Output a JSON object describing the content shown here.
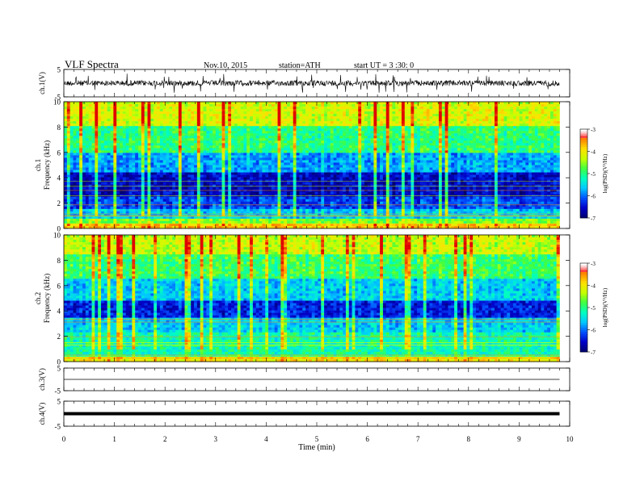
{
  "header": {
    "title": "VLF Spectra",
    "date": "Nov.10, 2015",
    "station": "station=ATH",
    "start": "start UT =  3 :30: 0"
  },
  "colors": {
    "spectrum_scale": [
      "#000070",
      "#0000c8",
      "#0050ff",
      "#00c8ff",
      "#00ffc0",
      "#40ff40",
      "#c8ff00",
      "#ffe000",
      "#ff8000",
      "#e00000",
      "#ffffff"
    ],
    "waveform": "#000000"
  },
  "chart_data": [
    {
      "type": "line",
      "panel": "ch1-waveform",
      "ylabel": "ch.1(V)",
      "ylim": [
        -5,
        5
      ],
      "yticks": [
        "5",
        "-5"
      ],
      "xlim": [
        0,
        10
      ],
      "description_values": {
        "typical_amplitude": 1.0,
        "spike_max": 3.5
      }
    },
    {
      "type": "heatmap",
      "panel": "ch1-spectrogram",
      "ylabel_line1": "ch.1",
      "ylabel_line2": "Frequency (kHz)",
      "ylim": [
        0,
        10
      ],
      "yticks": [
        "0",
        "2",
        "4",
        "6",
        "8",
        "10"
      ],
      "xlim": [
        0,
        9.8
      ],
      "colorbar_label": "log(PSD)(V²/Hz)",
      "colorbar_range": [
        -7,
        -3
      ],
      "colorbar_ticks": [
        "-3",
        "-4",
        "-5",
        "-6",
        "-7"
      ],
      "bands_logpsd": [
        {
          "f": [
            0,
            0.3
          ],
          "v": -3.8
        },
        {
          "f": [
            0.3,
            0.8
          ],
          "v": -4.6
        },
        {
          "f": [
            0.8,
            1.5
          ],
          "v": -5.6
        },
        {
          "f": [
            1.5,
            2.5
          ],
          "v": -6.2
        },
        {
          "f": [
            2.5,
            4.5
          ],
          "v": -6.6
        },
        {
          "f": [
            4.5,
            6.0
          ],
          "v": -5.8
        },
        {
          "f": [
            6.0,
            8.0
          ],
          "v": -5.0
        },
        {
          "f": [
            8.0,
            10.0
          ],
          "v": -4.2
        }
      ]
    },
    {
      "type": "heatmap",
      "panel": "ch2-spectrogram",
      "ylabel_line1": "ch.2",
      "ylabel_line2": "Frequency (kHz)",
      "ylim": [
        0,
        10
      ],
      "yticks": [
        "0",
        "2",
        "4",
        "6",
        "8",
        "10"
      ],
      "xlim": [
        0,
        9.8
      ],
      "colorbar_label": "log(PSD)(V²/Hz)",
      "colorbar_range": [
        -7,
        -3
      ],
      "colorbar_ticks": [
        "-3",
        "-4",
        "-5",
        "-6",
        "-7"
      ],
      "bands_logpsd": [
        {
          "f": [
            0,
            0.3
          ],
          "v": -4.0
        },
        {
          "f": [
            0.3,
            2.3
          ],
          "v": -5.2
        },
        {
          "f": [
            2.3,
            3.5
          ],
          "v": -5.6
        },
        {
          "f": [
            3.5,
            4.8
          ],
          "v": -6.4
        },
        {
          "f": [
            4.8,
            6.5
          ],
          "v": -5.6
        },
        {
          "f": [
            6.5,
            8.5
          ],
          "v": -4.9
        },
        {
          "f": [
            8.5,
            10.0
          ],
          "v": -4.3
        }
      ]
    },
    {
      "type": "line",
      "panel": "ch3-waveform",
      "ylabel": "ch.3(V)",
      "ylim": [
        -5,
        5
      ],
      "yticks": [
        "5",
        "-5"
      ],
      "xlim": [
        0,
        10
      ],
      "description_values": {
        "level": 0.0
      }
    },
    {
      "type": "line",
      "panel": "ch4-waveform",
      "ylabel": "ch.4(V)",
      "ylim": [
        -5,
        5
      ],
      "yticks": [
        "5",
        "-5"
      ],
      "xlim": [
        0,
        10
      ],
      "description_values": {
        "level": 0.0
      }
    }
  ],
  "xaxis": {
    "label": "Time (min)",
    "ticks": [
      "0",
      "1",
      "2",
      "3",
      "4",
      "5",
      "6",
      "7",
      "8",
      "9",
      "10"
    ]
  }
}
